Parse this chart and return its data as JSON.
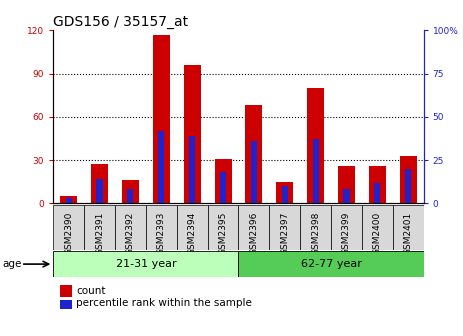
{
  "title": "GDS156 / 35157_at",
  "samples": [
    "GSM2390",
    "GSM2391",
    "GSM2392",
    "GSM2393",
    "GSM2394",
    "GSM2395",
    "GSM2396",
    "GSM2397",
    "GSM2398",
    "GSM2399",
    "GSM2400",
    "GSM2401"
  ],
  "count_values": [
    5,
    27,
    16,
    117,
    96,
    31,
    68,
    15,
    80,
    26,
    26,
    33
  ],
  "percentile_values": [
    3,
    14,
    8,
    42,
    39,
    18,
    36,
    10,
    37,
    8,
    12,
    20
  ],
  "groups": [
    {
      "label": "21-31 year",
      "start": 0,
      "end": 6
    },
    {
      "label": "62-77 year",
      "start": 6,
      "end": 12
    }
  ],
  "ylim_left": [
    0,
    120
  ],
  "ylim_right": [
    0,
    100
  ],
  "yticks_left": [
    0,
    30,
    60,
    90,
    120
  ],
  "yticks_right": [
    0,
    25,
    50,
    75,
    100
  ],
  "bar_color_red": "#CC0000",
  "bar_color_blue": "#2222CC",
  "bg_color": "#FFFFFF",
  "group_bg_color_light": "#BBFFBB",
  "group_bg_color_dark": "#55CC55",
  "xlabel_bg": "#D8D8D8",
  "bar_width": 0.55,
  "blue_bar_width": 0.2,
  "age_label": "age",
  "legend_count": "count",
  "legend_percentile": "percentile rank within the sample",
  "title_fontsize": 10,
  "tick_fontsize": 6.5,
  "label_fontsize": 7.5,
  "group_label_fontsize": 8
}
